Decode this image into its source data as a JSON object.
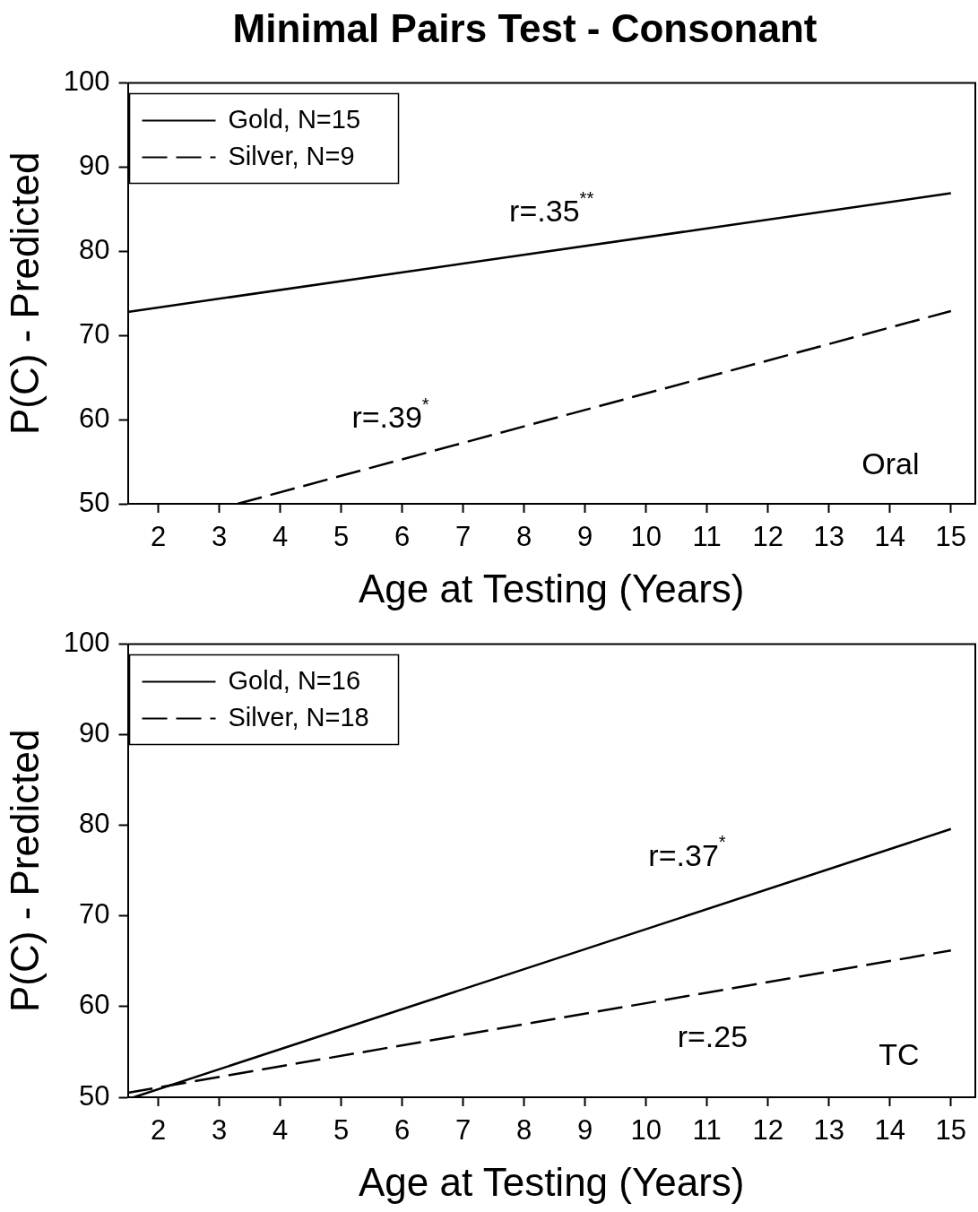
{
  "chart_data": [
    {
      "type": "line",
      "title": "Minimal Pairs Test - Consonant",
      "xlabel": "Age at Testing (Years)",
      "ylabel": "P(C) - Predicted",
      "xlim": [
        1.5,
        15.4
      ],
      "xticks": [
        2,
        3,
        4,
        5,
        6,
        7,
        8,
        9,
        10,
        11,
        12,
        13,
        14,
        15
      ],
      "ylim": [
        50,
        100
      ],
      "yticks": [
        50,
        60,
        70,
        80,
        90,
        100
      ],
      "grid": false,
      "legend": "top left",
      "marker": "none",
      "series": [
        {
          "name": "Gold, N=15",
          "color": "#000000",
          "line_style": "solid",
          "x": [
            1.5,
            15
          ],
          "values": [
            72.8,
            86.9
          ]
        },
        {
          "name": "Silver, N=9",
          "color": "#000000",
          "line_style": "dashed",
          "x": [
            3.3,
            15
          ],
          "values": [
            50,
            72.9
          ]
        }
      ],
      "annotations": [
        "r=.35$^{**}$",
        "r=.39$^{*}$",
        "Oral"
      ]
    },
    {
      "type": "line",
      "xlabel": "Age at Testing (Years)",
      "ylabel": "P(C) - Predicted",
      "xlim": [
        1.5,
        15.4
      ],
      "xticks": [
        2,
        3,
        4,
        5,
        6,
        7,
        8,
        9,
        10,
        11,
        12,
        13,
        14,
        15
      ],
      "ylim": [
        50,
        100
      ],
      "yticks": [
        50,
        60,
        70,
        80,
        90,
        100
      ],
      "grid": false,
      "legend": "top left",
      "marker": "none",
      "series": [
        {
          "name": "Gold, N=16",
          "color": "#000000",
          "line_style": "solid",
          "x": [
            1.6,
            15
          ],
          "values": [
            50,
            79.6
          ]
        },
        {
          "name": "Silver, N=18",
          "color": "#000000",
          "line_style": "dashed",
          "x": [
            1.5,
            15
          ],
          "values": [
            50.5,
            66.2
          ]
        }
      ],
      "annotations": [
        "r=.37$^{*}$",
        "r=.25",
        "TC"
      ]
    }
  ]
}
